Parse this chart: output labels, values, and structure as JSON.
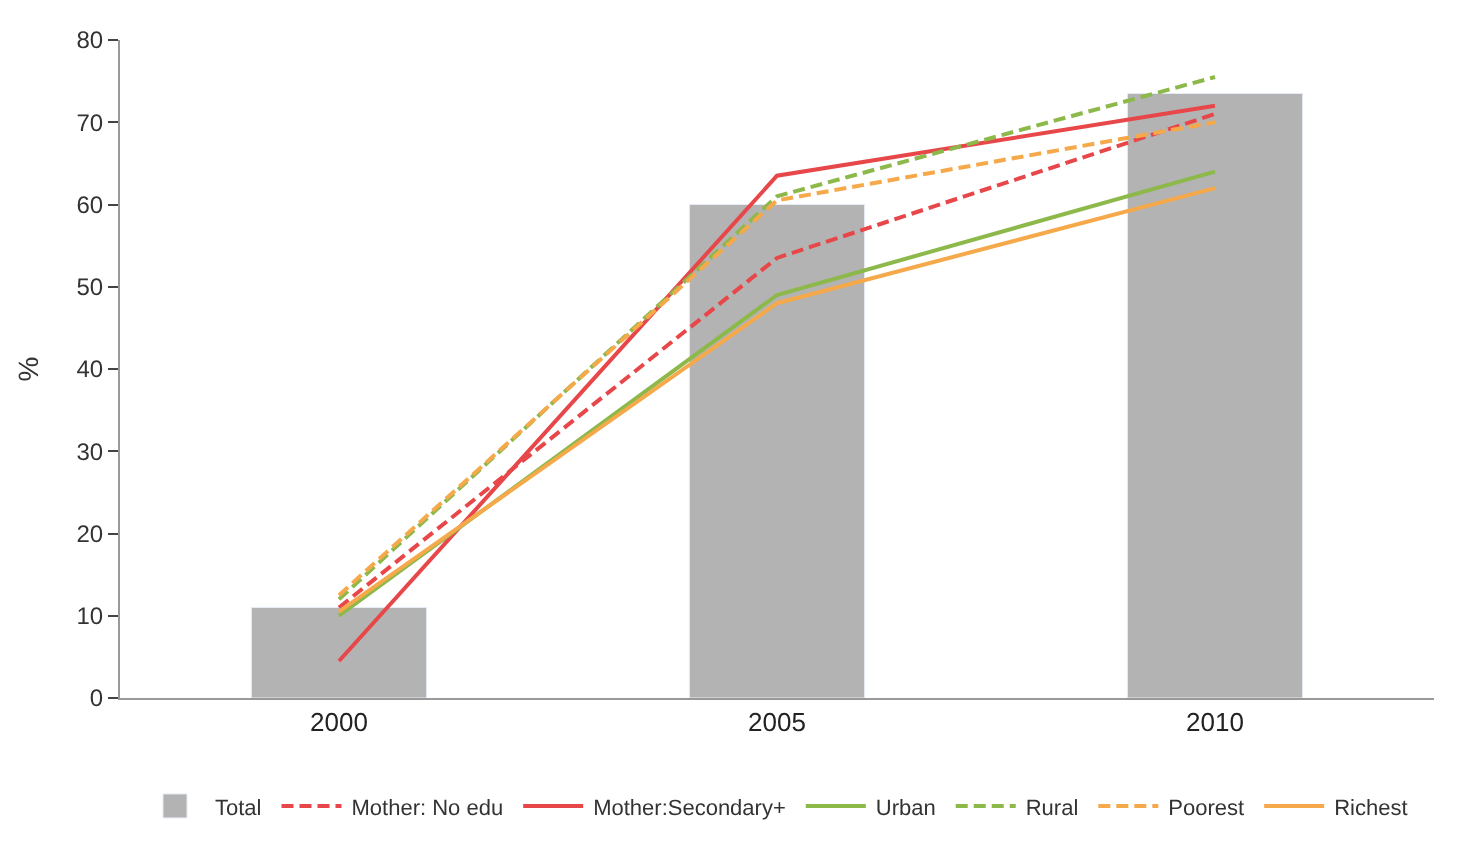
{
  "chart_data": {
    "type": "bar",
    "ylabel": "%",
    "categories": [
      "2000",
      "2005",
      "2010"
    ],
    "ylim": [
      0,
      80
    ],
    "yticks": [
      0,
      10,
      20,
      30,
      40,
      50,
      60,
      70,
      80
    ],
    "grid": false,
    "legend": "bottom",
    "series": [
      {
        "name": "Total",
        "color": "#b3b3b3",
        "values": [
          11,
          60,
          73.5
        ]
      },
      {
        "name": "Mother: No edu",
        "type": "line",
        "line_style": "dashed",
        "color": "#e8474a",
        "values": [
          11,
          53.5,
          71
        ]
      },
      {
        "name": "Mother:Secondary+",
        "type": "line",
        "line_style": "solid",
        "color": "#e8474a",
        "values": [
          4.5,
          63.5,
          72
        ]
      },
      {
        "name": "Urban",
        "type": "line",
        "line_style": "solid",
        "color": "#8db84a",
        "values": [
          10,
          49,
          64
        ]
      },
      {
        "name": "Rural",
        "type": "line",
        "line_style": "dashed",
        "color": "#8db84a",
        "values": [
          12,
          61,
          75.5
        ]
      },
      {
        "name": "Poorest",
        "type": "line",
        "line_style": "dashed",
        "color": "#f5a94a",
        "values": [
          12.5,
          60.5,
          70
        ]
      },
      {
        "name": "Richest",
        "type": "line",
        "line_style": "solid",
        "color": "#f5a94a",
        "values": [
          10.5,
          48,
          62
        ]
      }
    ]
  }
}
